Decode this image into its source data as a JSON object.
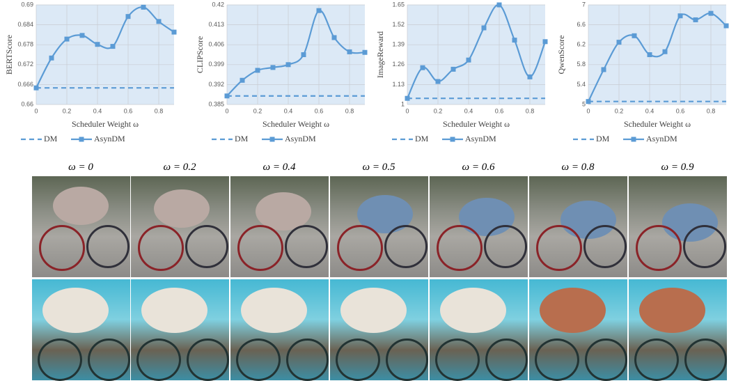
{
  "chart_data": [
    {
      "type": "line",
      "ylabel": "BERTScore",
      "xlabel": "Scheduler Weight ω",
      "x": [
        0,
        0.1,
        0.2,
        0.3,
        0.4,
        0.5,
        0.6,
        0.7,
        0.8,
        0.9
      ],
      "xlim": [
        0,
        0.9
      ],
      "xticks": [
        0,
        0.2,
        0.4,
        0.6,
        0.8
      ],
      "ylim": [
        0.66,
        0.69
      ],
      "yticks": [
        0.66,
        0.666,
        0.672,
        0.678,
        0.684,
        0.69
      ],
      "grid": true,
      "smooth": true,
      "series": [
        {
          "name": "DM",
          "color": "#5b9bd5",
          "line_style": "dashed",
          "marker": "none",
          "values": [
            0.665,
            0.665,
            0.665,
            0.665,
            0.665,
            0.665,
            0.665,
            0.665,
            0.665,
            0.665
          ]
        },
        {
          "name": "AsynDM",
          "color": "#5b9bd5",
          "line_style": "solid",
          "marker": "square",
          "values": [
            0.665,
            0.674,
            0.6797,
            0.6808,
            0.6781,
            0.6775,
            0.6865,
            0.6893,
            0.685,
            0.6818
          ]
        }
      ]
    },
    {
      "type": "line",
      "ylabel": "CLIPScore",
      "xlabel": "Scheduler Weight ω",
      "x": [
        0,
        0.1,
        0.2,
        0.3,
        0.4,
        0.5,
        0.6,
        0.7,
        0.8,
        0.9
      ],
      "xlim": [
        0,
        0.9
      ],
      "xticks": [
        0,
        0.2,
        0.4,
        0.6,
        0.8
      ],
      "ylim": [
        0.385,
        0.42
      ],
      "yticks": [
        0.385,
        0.392,
        0.399,
        0.406,
        0.413,
        0.42
      ],
      "grid": true,
      "smooth": true,
      "series": [
        {
          "name": "DM",
          "color": "#5b9bd5",
          "line_style": "dashed",
          "marker": "none",
          "values": [
            0.388,
            0.388,
            0.388,
            0.388,
            0.388,
            0.388,
            0.388,
            0.388,
            0.388,
            0.388
          ]
        },
        {
          "name": "AsynDM",
          "color": "#5b9bd5",
          "line_style": "solid",
          "marker": "square",
          "values": [
            0.388,
            0.3935,
            0.397,
            0.398,
            0.399,
            0.4025,
            0.418,
            0.4085,
            0.4035,
            0.4033
          ]
        }
      ]
    },
    {
      "type": "line",
      "ylabel": "ImageReward",
      "xlabel": "Scheduler Weight ω",
      "x": [
        0,
        0.1,
        0.2,
        0.3,
        0.4,
        0.5,
        0.6,
        0.7,
        0.8,
        0.9
      ],
      "xlim": [
        0,
        0.9
      ],
      "xticks": [
        0,
        0.2,
        0.4,
        0.6,
        0.8
      ],
      "ylim": [
        1,
        1.65
      ],
      "yticks": [
        1,
        1.13,
        1.26,
        1.39,
        1.52,
        1.65
      ],
      "grid": true,
      "smooth": true,
      "series": [
        {
          "name": "DM",
          "color": "#5b9bd5",
          "line_style": "dashed",
          "marker": "none",
          "values": [
            1.04,
            1.04,
            1.04,
            1.04,
            1.04,
            1.04,
            1.04,
            1.04,
            1.04,
            1.04
          ]
        },
        {
          "name": "AsynDM",
          "color": "#5b9bd5",
          "line_style": "solid",
          "marker": "square",
          "values": [
            1.04,
            1.24,
            1.15,
            1.23,
            1.29,
            1.5,
            1.65,
            1.42,
            1.18,
            1.41
          ]
        }
      ]
    },
    {
      "type": "line",
      "ylabel": "QwenScore",
      "xlabel": "Scheduler Weight ω",
      "x": [
        0,
        0.1,
        0.2,
        0.3,
        0.4,
        0.5,
        0.6,
        0.7,
        0.8,
        0.9
      ],
      "xlim": [
        0,
        0.9
      ],
      "xticks": [
        0,
        0.2,
        0.4,
        0.6,
        0.8
      ],
      "ylim": [
        5,
        7
      ],
      "yticks": [
        5,
        5.4,
        5.8,
        6.2,
        6.6,
        7
      ],
      "grid": true,
      "smooth": true,
      "series": [
        {
          "name": "DM",
          "color": "#5b9bd5",
          "line_style": "dashed",
          "marker": "none",
          "values": [
            5.06,
            5.06,
            5.06,
            5.06,
            5.06,
            5.06,
            5.06,
            5.06,
            5.06,
            5.06
          ]
        },
        {
          "name": "AsynDM",
          "color": "#5b9bd5",
          "line_style": "solid",
          "marker": "square",
          "values": [
            5.06,
            5.7,
            6.25,
            6.38,
            6.0,
            6.06,
            6.78,
            6.7,
            6.83,
            6.58
          ]
        }
      ]
    }
  ],
  "image_grid": {
    "column_labels": [
      "ω = 0",
      "ω = 0.2",
      "ω = 0.4",
      "ω = 0.5",
      "ω = 0.6",
      "ω = 0.8",
      "ω = 0.9"
    ]
  }
}
